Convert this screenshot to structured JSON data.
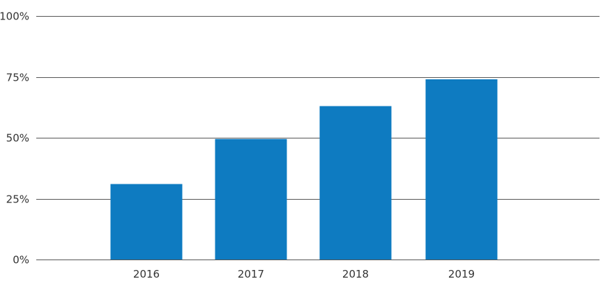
{
  "chart_data": {
    "type": "bar",
    "categories": [
      "2016",
      "2017",
      "2018",
      "2019"
    ],
    "values": [
      31,
      49.5,
      63,
      74
    ],
    "ylim": [
      0,
      100
    ],
    "yticks": [
      0,
      25,
      50,
      75,
      100
    ],
    "ytick_labels": [
      "0%",
      "25%",
      "50%",
      "75%",
      "100%"
    ],
    "grid": true,
    "legend": "none",
    "bar_color": "#0e7bc1"
  }
}
